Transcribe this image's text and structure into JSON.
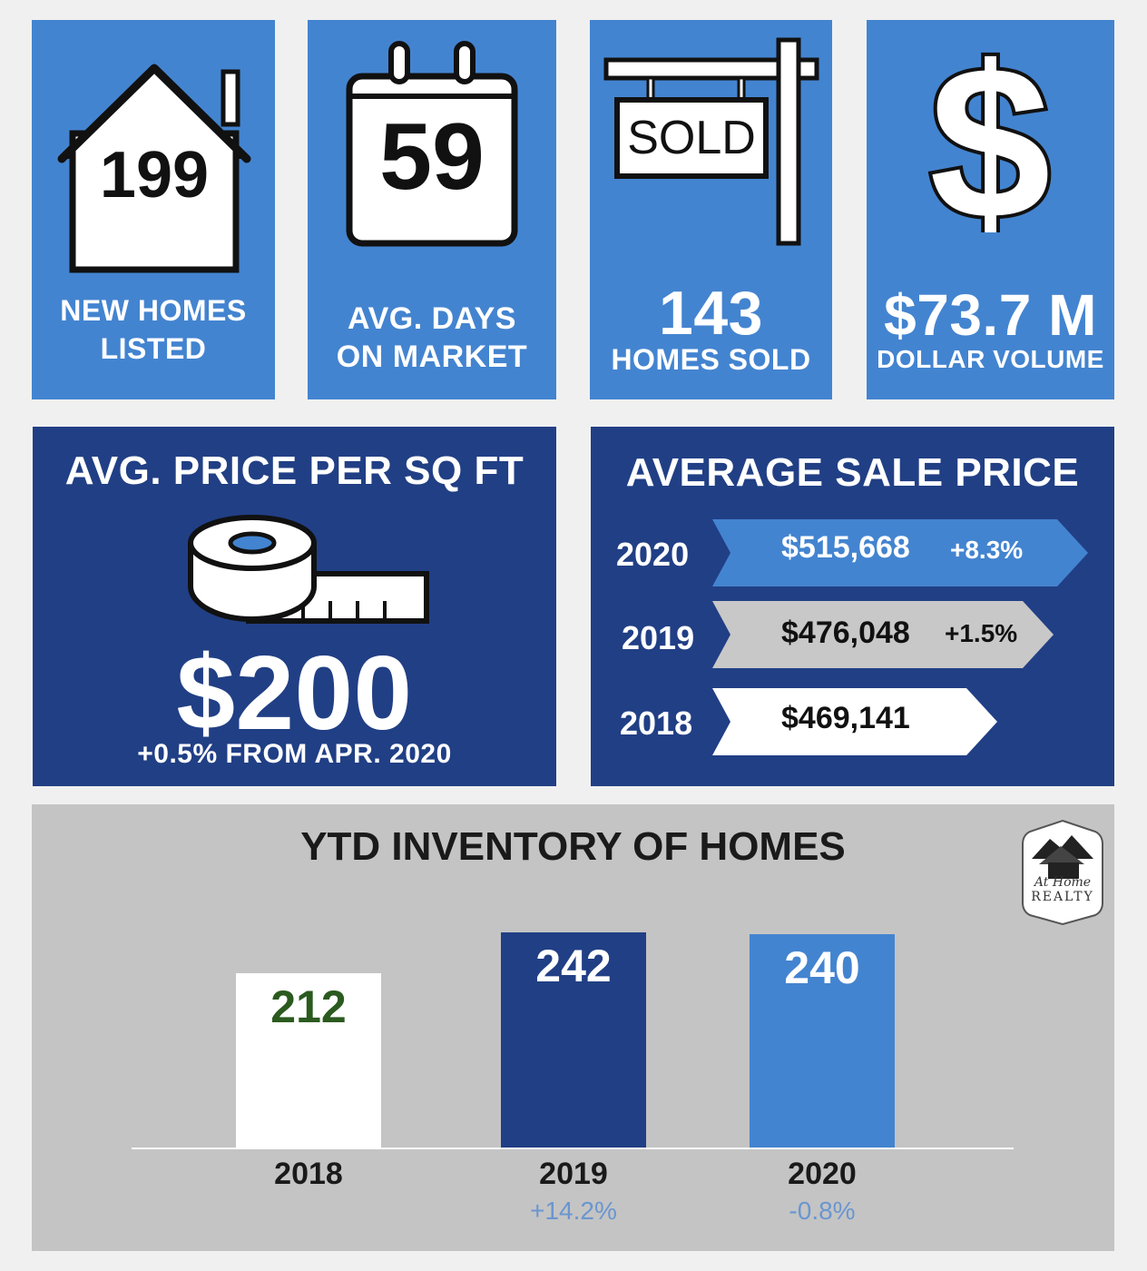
{
  "tiles": {
    "new_homes": {
      "value": "199",
      "label_line1": "NEW HOMES",
      "label_line2": "LISTED"
    },
    "days": {
      "value": "59",
      "label_line1": "AVG. DAYS",
      "label_line2": "ON MARKET"
    },
    "sold": {
      "sign": "SOLD",
      "value": "143",
      "label": "HOMES SOLD"
    },
    "volume": {
      "value": "$73.7 M",
      "label": "DOLLAR VOLUME"
    }
  },
  "price_sqft": {
    "title": "AVG. PRICE PER SQ FT",
    "value": "$200",
    "change": "+0.5% FROM APR. 2020"
  },
  "sale_price": {
    "title": "AVERAGE SALE PRICE",
    "rows": [
      {
        "year": "2020",
        "price": "$515,668",
        "change": "+8.3%"
      },
      {
        "year": "2019",
        "price": "$476,048",
        "change": "+1.5%"
      },
      {
        "year": "2018",
        "price": "$469,141",
        "change": ""
      }
    ]
  },
  "inventory": {
    "title": "YTD INVENTORY OF HOMES",
    "logo_text": {
      "line1": "At Home",
      "line2": "REALTY"
    }
  },
  "chart_data": {
    "type": "bar",
    "title": "YTD INVENTORY OF HOMES",
    "categories": [
      "2018",
      "2019",
      "2020"
    ],
    "values": [
      212,
      242,
      240
    ],
    "value_labels": [
      "212",
      "242",
      "240"
    ],
    "changes": [
      "",
      "+14.2%",
      "-0.8%"
    ],
    "colors": [
      "#ffffff",
      "#213f85",
      "#4384d0"
    ],
    "label_colors": [
      "#2b5a1f",
      "#ffffff",
      "#ffffff"
    ],
    "xlabel": "",
    "ylabel": "",
    "grid": false
  },
  "colors": {
    "tile_blue": "#4384d0",
    "tile_dark": "#213f85",
    "chart_bg": "#c4c4c4",
    "ribbon_gray": "#c8c8c8"
  },
  "icons": [
    "house-icon",
    "calendar-icon",
    "sold-sign-icon",
    "dollar-icon",
    "tape-measure-icon",
    "realty-logo"
  ]
}
